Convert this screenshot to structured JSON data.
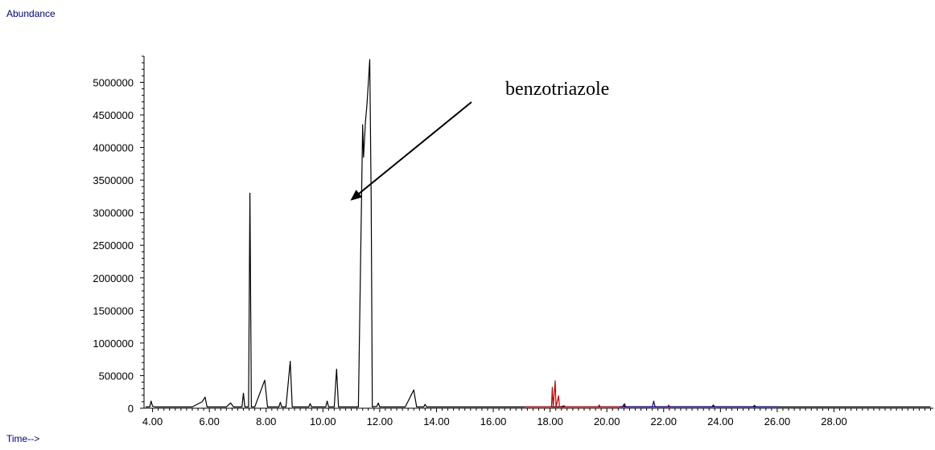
{
  "chart_data": {
    "type": "line",
    "ylabel": "Abundance",
    "xlabel": "Time-->",
    "xlim": [
      3.7,
      31.5
    ],
    "ylim": [
      0,
      5400000
    ],
    "x_ticks": [
      "4.00",
      "6.00",
      "8.00",
      "10.00",
      "12.00",
      "14.00",
      "16.00",
      "18.00",
      "20.00",
      "22.00",
      "24.00",
      "26.00",
      "28.00"
    ],
    "y_ticks": [
      "0",
      "500000",
      "1000000",
      "1500000",
      "2000000",
      "2500000",
      "3000000",
      "3500000",
      "4000000",
      "4500000",
      "5000000"
    ],
    "grid": false,
    "legend": "none",
    "annotation": {
      "text": "benzotriazole",
      "x": 10.9,
      "y": 3300000
    },
    "series": [
      {
        "color": "#000000",
        "points": [
          [
            3.75,
            20000
          ],
          [
            3.9,
            20000
          ],
          [
            3.95,
            110000
          ],
          [
            4.0,
            30000
          ],
          [
            4.1,
            20000
          ],
          [
            5.4,
            20000
          ],
          [
            5.75,
            100000
          ],
          [
            5.85,
            170000
          ],
          [
            5.92,
            20000
          ],
          [
            6.6,
            20000
          ],
          [
            6.75,
            80000
          ],
          [
            6.85,
            20000
          ],
          [
            7.15,
            20000
          ],
          [
            7.2,
            230000
          ],
          [
            7.25,
            20000
          ],
          [
            7.38,
            20000
          ],
          [
            7.43,
            3300000
          ],
          [
            7.48,
            20000
          ],
          [
            7.6,
            20000
          ],
          [
            7.95,
            430000
          ],
          [
            8.05,
            20000
          ],
          [
            8.45,
            20000
          ],
          [
            8.5,
            90000
          ],
          [
            8.55,
            20000
          ],
          [
            8.7,
            20000
          ],
          [
            8.85,
            720000
          ],
          [
            8.92,
            20000
          ],
          [
            9.5,
            20000
          ],
          [
            9.55,
            70000
          ],
          [
            9.6,
            20000
          ],
          [
            10.1,
            20000
          ],
          [
            10.15,
            110000
          ],
          [
            10.2,
            20000
          ],
          [
            10.4,
            20000
          ],
          [
            10.48,
            600000
          ],
          [
            10.55,
            20000
          ],
          [
            11.25,
            20000
          ],
          [
            11.4,
            4350000
          ],
          [
            11.43,
            3850000
          ],
          [
            11.5,
            4400000
          ],
          [
            11.55,
            4650000
          ],
          [
            11.6,
            5000000
          ],
          [
            11.65,
            5350000
          ],
          [
            11.7,
            3200000
          ],
          [
            11.74,
            20000
          ],
          [
            11.9,
            30000
          ],
          [
            11.95,
            80000
          ],
          [
            12.0,
            20000
          ],
          [
            12.9,
            20000
          ],
          [
            13.2,
            280000
          ],
          [
            13.3,
            20000
          ],
          [
            13.55,
            20000
          ],
          [
            13.6,
            60000
          ],
          [
            13.65,
            20000
          ],
          [
            31.4,
            20000
          ]
        ]
      },
      {
        "color": "#c00000",
        "points": [
          [
            17.1,
            20000
          ],
          [
            18.05,
            20000
          ],
          [
            18.08,
            320000
          ],
          [
            18.11,
            20000
          ],
          [
            18.18,
            420000
          ],
          [
            18.21,
            20000
          ],
          [
            18.3,
            190000
          ],
          [
            18.33,
            20000
          ],
          [
            18.5,
            40000
          ],
          [
            18.53,
            20000
          ],
          [
            19.7,
            20000
          ],
          [
            19.73,
            50000
          ],
          [
            19.76,
            20000
          ],
          [
            20.6,
            20000
          ],
          [
            20.63,
            70000
          ],
          [
            20.66,
            20000
          ],
          [
            22.15,
            20000
          ],
          [
            22.18,
            50000
          ],
          [
            22.21,
            20000
          ],
          [
            23.7,
            20000
          ],
          [
            23.73,
            40000
          ],
          [
            23.76,
            20000
          ],
          [
            25.0,
            20000
          ]
        ]
      },
      {
        "color": "#000099",
        "points": [
          [
            20.45,
            20000
          ],
          [
            20.55,
            20000
          ],
          [
            20.6,
            60000
          ],
          [
            20.65,
            20000
          ],
          [
            21.6,
            20000
          ],
          [
            21.65,
            110000
          ],
          [
            21.7,
            20000
          ],
          [
            23.7,
            20000
          ],
          [
            23.75,
            50000
          ],
          [
            23.8,
            20000
          ],
          [
            25.15,
            20000
          ],
          [
            25.2,
            45000
          ],
          [
            25.25,
            20000
          ],
          [
            26.0,
            20000
          ]
        ]
      }
    ]
  }
}
